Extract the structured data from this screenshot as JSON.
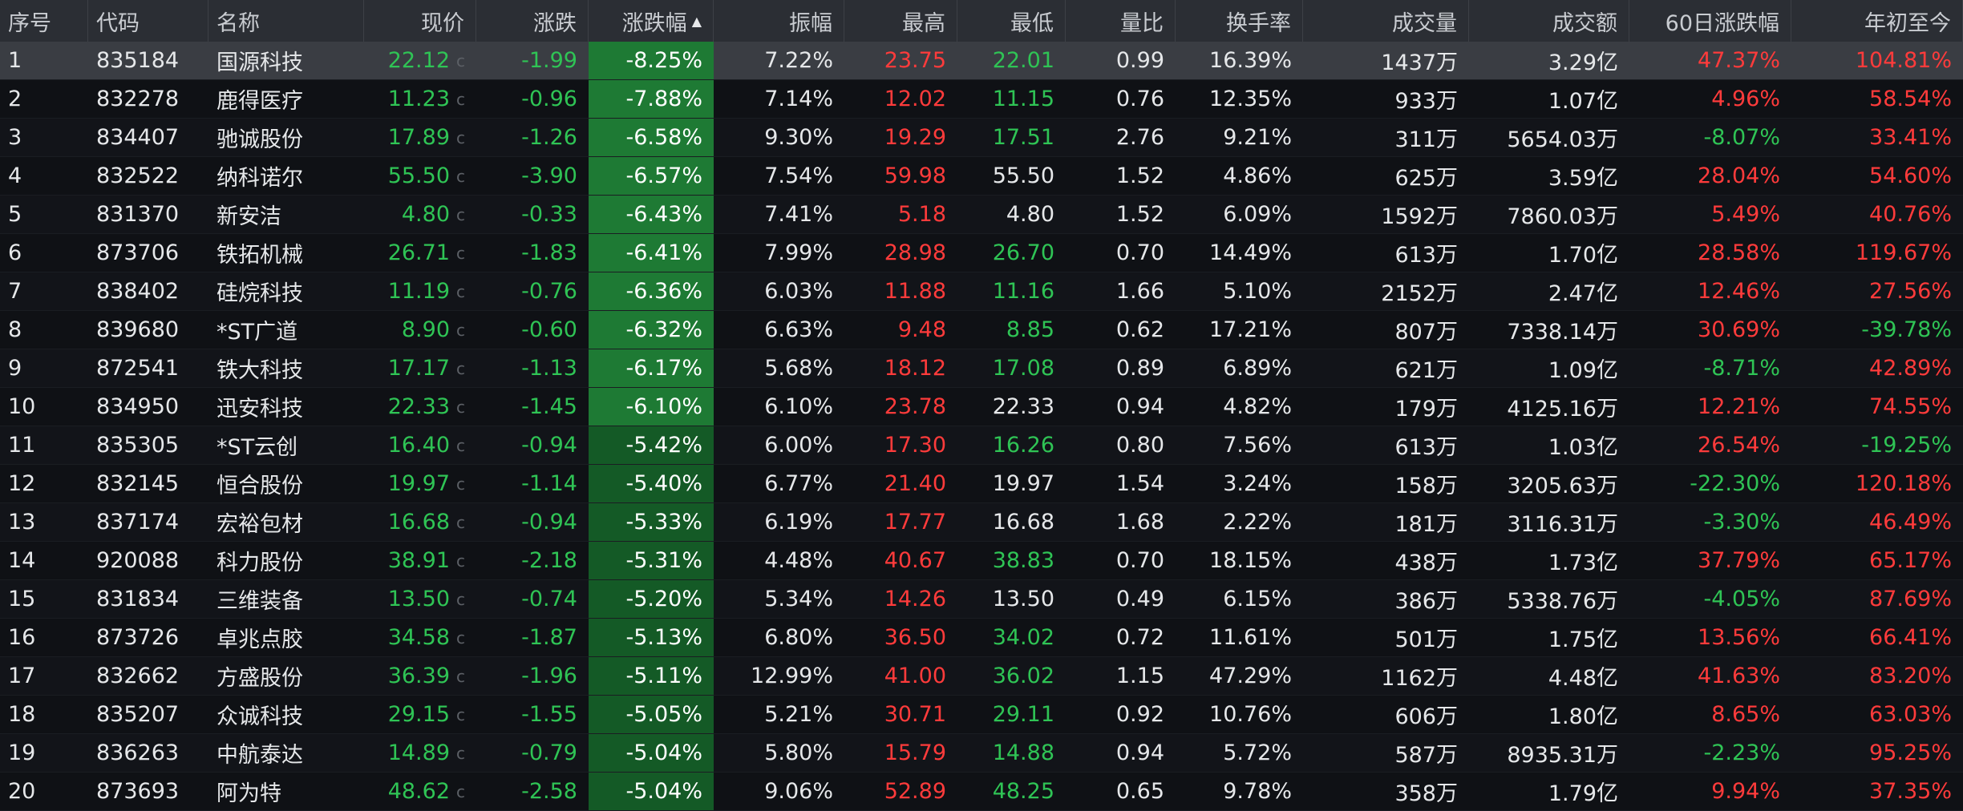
{
  "columns": [
    "序号",
    "代码",
    "名称",
    "现价",
    "涨跌",
    "涨跌幅",
    "振幅",
    "最高",
    "最低",
    "量比",
    "换手率",
    "成交量",
    "成交额",
    "60日涨跌幅",
    "年初至今"
  ],
  "sort_indicator": "▲",
  "price_badge": "c",
  "colors": {
    "up": "#ff3b3b",
    "down": "#2fc455",
    "neutral": "#e6e8ea",
    "chg_bg": "#1e7a34",
    "chg_bg_dark": "#145a26",
    "header_bg": "#2b2e34"
  },
  "rows": [
    [
      "1",
      "835184",
      "国源科技",
      "22.12",
      "-1.99",
      "-8.25%",
      "7.22%",
      "23.75",
      "22.01",
      "0.99",
      "16.39%",
      "1437万",
      "3.29亿",
      "47.37%",
      "104.81%"
    ],
    [
      "2",
      "832278",
      "鹿得医疗",
      "11.23",
      "-0.96",
      "-7.88%",
      "7.14%",
      "12.02",
      "11.15",
      "0.76",
      "12.35%",
      "933万",
      "1.07亿",
      "4.96%",
      "58.54%"
    ],
    [
      "3",
      "834407",
      "驰诚股份",
      "17.89",
      "-1.26",
      "-6.58%",
      "9.30%",
      "19.29",
      "17.51",
      "2.76",
      "9.21%",
      "311万",
      "5654.03万",
      "-8.07%",
      "33.41%"
    ],
    [
      "4",
      "832522",
      "纳科诺尔",
      "55.50",
      "-3.90",
      "-6.57%",
      "7.54%",
      "59.98",
      "55.50",
      "1.52",
      "4.86%",
      "625万",
      "3.59亿",
      "28.04%",
      "54.60%"
    ],
    [
      "5",
      "831370",
      "新安洁",
      "4.80",
      "-0.33",
      "-6.43%",
      "7.41%",
      "5.18",
      "4.80",
      "1.52",
      "6.09%",
      "1592万",
      "7860.03万",
      "5.49%",
      "40.76%"
    ],
    [
      "6",
      "873706",
      "铁拓机械",
      "26.71",
      "-1.83",
      "-6.41%",
      "7.99%",
      "28.98",
      "26.70",
      "0.70",
      "14.49%",
      "613万",
      "1.70亿",
      "28.58%",
      "119.67%"
    ],
    [
      "7",
      "838402",
      "硅烷科技",
      "11.19",
      "-0.76",
      "-6.36%",
      "6.03%",
      "11.88",
      "11.16",
      "1.66",
      "5.10%",
      "2152万",
      "2.47亿",
      "12.46%",
      "27.56%"
    ],
    [
      "8",
      "839680",
      "*ST广道",
      "8.90",
      "-0.60",
      "-6.32%",
      "6.63%",
      "9.48",
      "8.85",
      "0.62",
      "17.21%",
      "807万",
      "7338.14万",
      "30.69%",
      "-39.78%"
    ],
    [
      "9",
      "872541",
      "铁大科技",
      "17.17",
      "-1.13",
      "-6.17%",
      "5.68%",
      "18.12",
      "17.08",
      "0.89",
      "6.89%",
      "621万",
      "1.09亿",
      "-8.71%",
      "42.89%"
    ],
    [
      "10",
      "834950",
      "迅安科技",
      "22.33",
      "-1.45",
      "-6.10%",
      "6.10%",
      "23.78",
      "22.33",
      "0.94",
      "4.82%",
      "179万",
      "4125.16万",
      "12.21%",
      "74.55%"
    ],
    [
      "11",
      "835305",
      "*ST云创",
      "16.40",
      "-0.94",
      "-5.42%",
      "6.00%",
      "17.30",
      "16.26",
      "0.80",
      "7.56%",
      "613万",
      "1.03亿",
      "26.54%",
      "-19.25%"
    ],
    [
      "12",
      "832145",
      "恒合股份",
      "19.97",
      "-1.14",
      "-5.40%",
      "6.77%",
      "21.40",
      "19.97",
      "1.54",
      "3.24%",
      "158万",
      "3205.63万",
      "-22.30%",
      "120.18%"
    ],
    [
      "13",
      "837174",
      "宏裕包材",
      "16.68",
      "-0.94",
      "-5.33%",
      "6.19%",
      "17.77",
      "16.68",
      "1.68",
      "2.22%",
      "181万",
      "3116.31万",
      "-3.30%",
      "46.49%"
    ],
    [
      "14",
      "920088",
      "科力股份",
      "38.91",
      "-2.18",
      "-5.31%",
      "4.48%",
      "40.67",
      "38.83",
      "0.70",
      "18.15%",
      "438万",
      "1.73亿",
      "37.79%",
      "65.17%"
    ],
    [
      "15",
      "831834",
      "三维装备",
      "13.50",
      "-0.74",
      "-5.20%",
      "5.34%",
      "14.26",
      "13.50",
      "0.49",
      "6.15%",
      "386万",
      "5338.76万",
      "-4.05%",
      "87.69%"
    ],
    [
      "16",
      "873726",
      "卓兆点胶",
      "34.58",
      "-1.87",
      "-5.13%",
      "6.80%",
      "36.50",
      "34.02",
      "0.72",
      "11.61%",
      "501万",
      "1.75亿",
      "13.56%",
      "66.41%"
    ],
    [
      "17",
      "832662",
      "方盛股份",
      "36.39",
      "-1.96",
      "-5.11%",
      "12.99%",
      "41.00",
      "36.02",
      "1.15",
      "47.29%",
      "1162万",
      "4.48亿",
      "41.63%",
      "83.20%"
    ],
    [
      "18",
      "835207",
      "众诚科技",
      "29.15",
      "-1.55",
      "-5.05%",
      "5.21%",
      "30.71",
      "29.11",
      "0.92",
      "10.76%",
      "606万",
      "1.80亿",
      "8.65%",
      "63.03%"
    ],
    [
      "19",
      "836263",
      "中航泰达",
      "14.89",
      "-0.79",
      "-5.04%",
      "5.80%",
      "15.79",
      "14.88",
      "0.94",
      "5.72%",
      "587万",
      "8935.31万",
      "-2.23%",
      "95.25%"
    ],
    [
      "20",
      "873693",
      "阿为特",
      "48.62",
      "-2.58",
      "-5.04%",
      "9.06%",
      "52.89",
      "48.25",
      "0.65",
      "9.78%",
      "358万",
      "1.79亿",
      "9.94%",
      "37.35%"
    ]
  ]
}
